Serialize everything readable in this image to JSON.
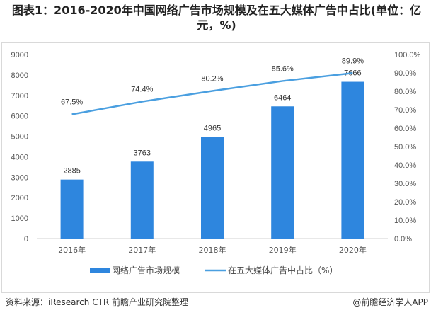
{
  "chart_data": {
    "type": "bar",
    "title": "图表1：2016-2020年中国网络广告市场规模及在五大媒体广告中占比(单位：亿元，%)",
    "categories": [
      "2016年",
      "2017年",
      "2018年",
      "2019年",
      "2020年"
    ],
    "series": [
      {
        "name": "网络广告市场规模",
        "type": "bar",
        "axis": "left",
        "values": [
          2885,
          3763,
          4965,
          6464,
          7666
        ],
        "labels": [
          "2885",
          "3763",
          "4965",
          "6464",
          "7666"
        ],
        "color": "#2e86de"
      },
      {
        "name": "在五大媒体广告中占比（%）",
        "type": "line",
        "axis": "right",
        "values": [
          67.5,
          74.4,
          80.2,
          85.6,
          89.9
        ],
        "labels": [
          "67.5%",
          "74.4%",
          "80.2%",
          "85.6%",
          "89.9%"
        ],
        "color": "#4a9fe0"
      }
    ],
    "ylim": [
      0,
      9000
    ],
    "yticks": [
      "0",
      "1000",
      "2000",
      "3000",
      "4000",
      "5000",
      "6000",
      "7000",
      "8000",
      "9000"
    ],
    "y2lim": [
      0,
      100
    ],
    "y2ticks": [
      "0.0%",
      "10.0%",
      "20.0%",
      "30.0%",
      "40.0%",
      "50.0%",
      "60.0%",
      "70.0%",
      "80.0%",
      "90.0%",
      "100.0%"
    ],
    "legend": "bottom",
    "grid": false
  },
  "footer": {
    "source": "资料来源：iResearch CTR 前瞻产业研究院整理",
    "credit": "@前瞻经济学人APP"
  }
}
